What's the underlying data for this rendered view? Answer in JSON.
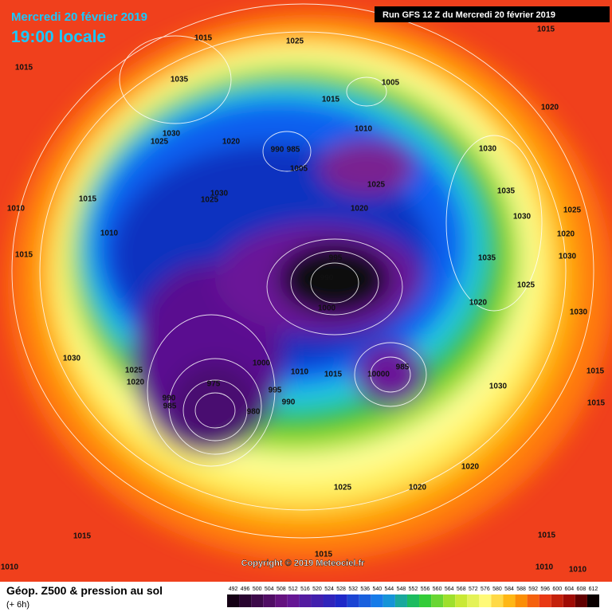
{
  "header": {
    "date": "Mercredi 20 février 2019",
    "time": "19:00 locale"
  },
  "run": "Run GFS 12 Z du Mercredi 20 février 2019",
  "footer": {
    "title": "Géop. Z500 & pression au sol",
    "lead": "(+ 6h)",
    "copyright": "Copyright © 2019 Meteociel.fr"
  },
  "colorbar": {
    "ticks": [
      492,
      496,
      500,
      504,
      508,
      512,
      516,
      520,
      524,
      528,
      532,
      536,
      540,
      544,
      548,
      552,
      556,
      560,
      564,
      568,
      572,
      576,
      580,
      584,
      588,
      592,
      596,
      600,
      604,
      608,
      612
    ]
  },
  "isobar_labels": [
    1015,
    1025,
    1015,
    1015,
    1035,
    1015,
    1005,
    1030,
    1025,
    1020,
    1010,
    990,
    985,
    1005,
    1030,
    1020,
    1025,
    1030,
    1025,
    1020,
    1035,
    1015,
    1010,
    1010,
    1015,
    1030,
    1025,
    1020,
    1035,
    1030,
    995,
    990,
    1000,
    1025,
    1020,
    1030,
    1025,
    1020,
    1030,
    1000,
    1010,
    1015,
    10000,
    985,
    975,
    990,
    985,
    995,
    990,
    980,
    1030,
    1015,
    1015,
    1020,
    1025,
    1020,
    1015,
    1015,
    1015,
    1010,
    1010,
    1010
  ]
}
